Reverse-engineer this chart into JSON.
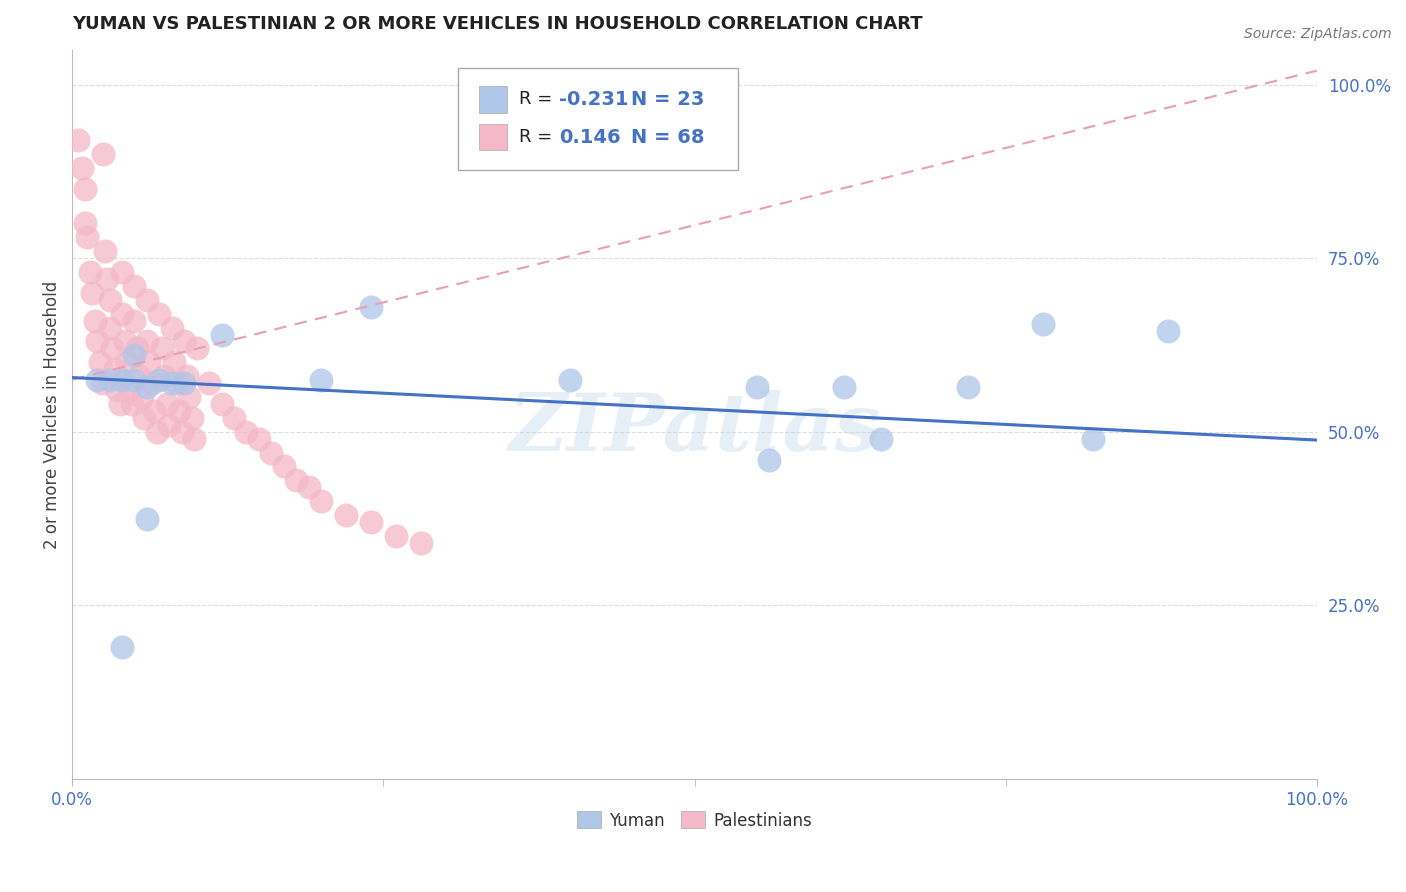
{
  "title": "YUMAN VS PALESTINIAN 2 OR MORE VEHICLES IN HOUSEHOLD CORRELATION CHART",
  "source_text": "Source: ZipAtlas.com",
  "ylabel": "2 or more Vehicles in Household",
  "xmin": 0.0,
  "xmax": 1.0,
  "ymin": 0.0,
  "ymax": 1.05,
  "yticks": [
    0.25,
    0.5,
    0.75,
    1.0
  ],
  "ytick_labels": [
    "25.0%",
    "50.0%",
    "75.0%",
    "100.0%"
  ],
  "xtick_labels": [
    "0.0%",
    "100.0%"
  ],
  "legend_R_yuman": "-0.231",
  "legend_N_yuman": "23",
  "legend_R_pales": "0.146",
  "legend_N_pales": "68",
  "color_yuman": "#aec6e8",
  "color_pales": "#f4b8c8",
  "line_color_yuman": "#4472c4",
  "line_color_pales": "#e8a0b0",
  "background_color": "#ffffff",
  "grid_color": "#dddddd",
  "yuman_x": [
    0.02,
    0.03,
    0.04,
    0.05,
    0.06,
    0.07,
    0.08,
    0.09,
    0.05,
    0.12,
    0.2,
    0.24,
    0.4,
    0.55,
    0.56,
    0.62,
    0.65,
    0.72,
    0.78,
    0.82,
    0.88,
    0.04,
    0.06
  ],
  "yuman_y": [
    0.575,
    0.575,
    0.575,
    0.61,
    0.565,
    0.575,
    0.57,
    0.57,
    0.575,
    0.64,
    0.575,
    0.68,
    0.575,
    0.565,
    0.46,
    0.565,
    0.49,
    0.565,
    0.655,
    0.49,
    0.645,
    0.19,
    0.375
  ],
  "pales_x": [
    0.005,
    0.008,
    0.01,
    0.01,
    0.012,
    0.014,
    0.016,
    0.018,
    0.02,
    0.022,
    0.024,
    0.025,
    0.026,
    0.028,
    0.03,
    0.03,
    0.032,
    0.034,
    0.036,
    0.038,
    0.04,
    0.04,
    0.042,
    0.044,
    0.046,
    0.048,
    0.05,
    0.05,
    0.052,
    0.054,
    0.056,
    0.058,
    0.06,
    0.06,
    0.062,
    0.064,
    0.066,
    0.068,
    0.07,
    0.072,
    0.074,
    0.076,
    0.078,
    0.08,
    0.082,
    0.084,
    0.086,
    0.088,
    0.09,
    0.092,
    0.094,
    0.096,
    0.098,
    0.1,
    0.11,
    0.12,
    0.13,
    0.14,
    0.15,
    0.16,
    0.17,
    0.18,
    0.19,
    0.2,
    0.22,
    0.24,
    0.26,
    0.28
  ],
  "pales_y": [
    0.92,
    0.88,
    0.85,
    0.8,
    0.78,
    0.73,
    0.7,
    0.66,
    0.63,
    0.6,
    0.57,
    0.9,
    0.76,
    0.72,
    0.69,
    0.65,
    0.62,
    0.59,
    0.56,
    0.54,
    0.73,
    0.67,
    0.63,
    0.6,
    0.56,
    0.54,
    0.71,
    0.66,
    0.62,
    0.58,
    0.55,
    0.52,
    0.69,
    0.63,
    0.6,
    0.57,
    0.53,
    0.5,
    0.67,
    0.62,
    0.58,
    0.54,
    0.51,
    0.65,
    0.6,
    0.57,
    0.53,
    0.5,
    0.63,
    0.58,
    0.55,
    0.52,
    0.49,
    0.62,
    0.57,
    0.54,
    0.52,
    0.5,
    0.49,
    0.47,
    0.45,
    0.43,
    0.42,
    0.4,
    0.38,
    0.37,
    0.35,
    0.34
  ],
  "yuman_trend_x0": 0.0,
  "yuman_trend_x1": 1.0,
  "yuman_trend_y0": 0.578,
  "yuman_trend_y1": 0.488,
  "pales_trend_x0": 0.0,
  "pales_trend_x1": 1.0,
  "pales_trend_y0": 0.575,
  "pales_trend_y1": 1.02,
  "watermark": "ZIPatlas"
}
